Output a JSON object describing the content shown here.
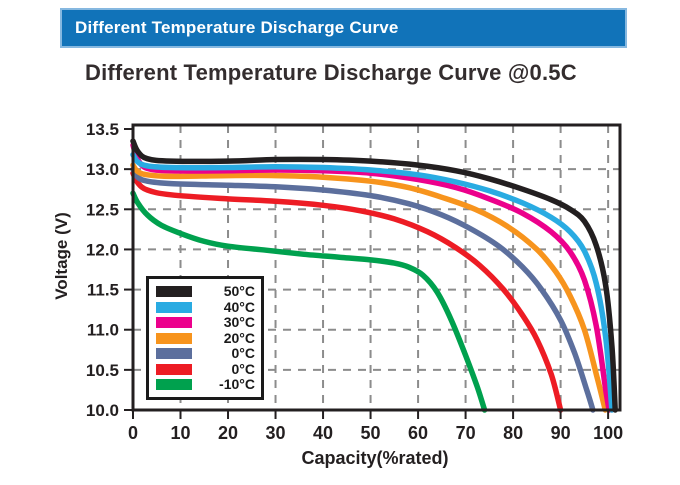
{
  "banner": {
    "title": "Different Temperature Discharge Curve",
    "bg_color": "#1173b9"
  },
  "page": {
    "title": "Different Temperature Discharge Curve @0.5C"
  },
  "colors": {
    "banner_blue": "#1173b9",
    "frame": "#231f20",
    "grid": "#8c8c8c",
    "text": "#332d2e"
  },
  "chart_data": {
    "type": "line",
    "title": "Different Temperature Discharge Curve @0.5C",
    "xlabel": "Capacity(%rated)",
    "ylabel": "Voltage (V)",
    "xlim": [
      0,
      102.5
    ],
    "ylim": [
      10.0,
      13.55
    ],
    "x_ticks": [
      0,
      10,
      20,
      30,
      40,
      50,
      60,
      70,
      80,
      90,
      100
    ],
    "y_ticks": [
      13.5,
      13.0,
      12.5,
      12.0,
      11.5,
      11.0,
      10.5,
      10.0
    ],
    "y_tick_labels": [
      "13.5",
      "13.0",
      "12.5",
      "12.0",
      "11.5",
      "11.0",
      "10.5",
      "10.0"
    ],
    "grid": "dashed-gray",
    "legend_position": "lower-left",
    "series": [
      {
        "name": "50°C",
        "color": "#231f20",
        "points": [
          [
            0,
            13.35
          ],
          [
            1,
            13.22
          ],
          [
            3,
            13.13
          ],
          [
            8,
            13.1
          ],
          [
            20,
            13.1
          ],
          [
            30,
            13.12
          ],
          [
            40,
            13.12
          ],
          [
            50,
            13.1
          ],
          [
            60,
            13.05
          ],
          [
            68,
            12.98
          ],
          [
            75,
            12.88
          ],
          [
            82,
            12.75
          ],
          [
            88,
            12.62
          ],
          [
            92,
            12.5
          ],
          [
            95,
            12.35
          ],
          [
            97.5,
            12.05
          ],
          [
            99.5,
            11.55
          ],
          [
            100.8,
            10.8
          ],
          [
            101.5,
            10.0
          ]
        ]
      },
      {
        "name": "40°C",
        "color": "#29abe2",
        "points": [
          [
            0,
            13.18
          ],
          [
            1,
            13.09
          ],
          [
            3,
            13.04
          ],
          [
            8,
            13.02
          ],
          [
            20,
            13.02
          ],
          [
            30,
            13.03
          ],
          [
            40,
            13.02
          ],
          [
            50,
            12.99
          ],
          [
            60,
            12.93
          ],
          [
            68,
            12.84
          ],
          [
            75,
            12.73
          ],
          [
            82,
            12.58
          ],
          [
            88,
            12.4
          ],
          [
            92,
            12.22
          ],
          [
            95,
            11.98
          ],
          [
            97.5,
            11.58
          ],
          [
            99.5,
            10.9
          ],
          [
            100.8,
            10.0
          ]
        ]
      },
      {
        "name": "30°C",
        "color": "#ec008c",
        "points": [
          [
            0,
            13.3
          ],
          [
            1,
            13.12
          ],
          [
            3,
            13.01
          ],
          [
            8,
            12.98
          ],
          [
            20,
            12.98
          ],
          [
            30,
            12.99
          ],
          [
            40,
            12.98
          ],
          [
            50,
            12.95
          ],
          [
            60,
            12.87
          ],
          [
            68,
            12.77
          ],
          [
            75,
            12.63
          ],
          [
            82,
            12.45
          ],
          [
            88,
            12.22
          ],
          [
            92,
            11.97
          ],
          [
            95,
            11.62
          ],
          [
            97.5,
            11.05
          ],
          [
            99.5,
            10.25
          ],
          [
            100.2,
            10.0
          ]
        ]
      },
      {
        "name": "20°C",
        "color": "#f7941d",
        "points": [
          [
            0,
            13.05
          ],
          [
            1,
            12.97
          ],
          [
            3,
            12.93
          ],
          [
            8,
            12.91
          ],
          [
            20,
            12.92
          ],
          [
            30,
            12.92
          ],
          [
            40,
            12.9
          ],
          [
            50,
            12.85
          ],
          [
            58,
            12.77
          ],
          [
            65,
            12.65
          ],
          [
            72,
            12.5
          ],
          [
            79,
            12.28
          ],
          [
            85,
            12.0
          ],
          [
            89,
            11.72
          ],
          [
            92,
            11.42
          ],
          [
            95,
            11.0
          ],
          [
            97.5,
            10.45
          ],
          [
            99.4,
            10.0
          ]
        ]
      },
      {
        "name": "0°C",
        "color": "#5c6f9d",
        "points": [
          [
            0,
            13.0
          ],
          [
            1,
            12.9
          ],
          [
            3,
            12.85
          ],
          [
            8,
            12.82
          ],
          [
            20,
            12.8
          ],
          [
            30,
            12.78
          ],
          [
            40,
            12.74
          ],
          [
            50,
            12.67
          ],
          [
            58,
            12.57
          ],
          [
            65,
            12.43
          ],
          [
            71,
            12.26
          ],
          [
            77,
            12.04
          ],
          [
            82,
            11.78
          ],
          [
            86,
            11.5
          ],
          [
            90,
            11.12
          ],
          [
            93,
            10.7
          ],
          [
            95.5,
            10.25
          ],
          [
            96.8,
            10.0
          ]
        ]
      },
      {
        "name": "0°C",
        "color": "#ed1c24",
        "points": [
          [
            0,
            12.95
          ],
          [
            1,
            12.83
          ],
          [
            3,
            12.74
          ],
          [
            8,
            12.68
          ],
          [
            20,
            12.63
          ],
          [
            30,
            12.6
          ],
          [
            40,
            12.55
          ],
          [
            48,
            12.48
          ],
          [
            55,
            12.38
          ],
          [
            62,
            12.22
          ],
          [
            68,
            12.02
          ],
          [
            73,
            11.8
          ],
          [
            78,
            11.5
          ],
          [
            82,
            11.18
          ],
          [
            85,
            10.88
          ],
          [
            88,
            10.45
          ],
          [
            90,
            10.0
          ]
        ]
      },
      {
        "name": "-10°C",
        "color": "#00a14e",
        "points": [
          [
            0,
            12.7
          ],
          [
            1,
            12.58
          ],
          [
            3,
            12.43
          ],
          [
            6,
            12.3
          ],
          [
            10,
            12.2
          ],
          [
            15,
            12.1
          ],
          [
            20,
            12.04
          ],
          [
            28,
            11.99
          ],
          [
            36,
            11.94
          ],
          [
            44,
            11.9
          ],
          [
            50,
            11.87
          ],
          [
            55,
            11.83
          ],
          [
            58,
            11.78
          ],
          [
            61,
            11.68
          ],
          [
            64,
            11.47
          ],
          [
            67,
            11.12
          ],
          [
            70,
            10.68
          ],
          [
            72.5,
            10.28
          ],
          [
            74,
            10.0
          ]
        ]
      }
    ]
  }
}
